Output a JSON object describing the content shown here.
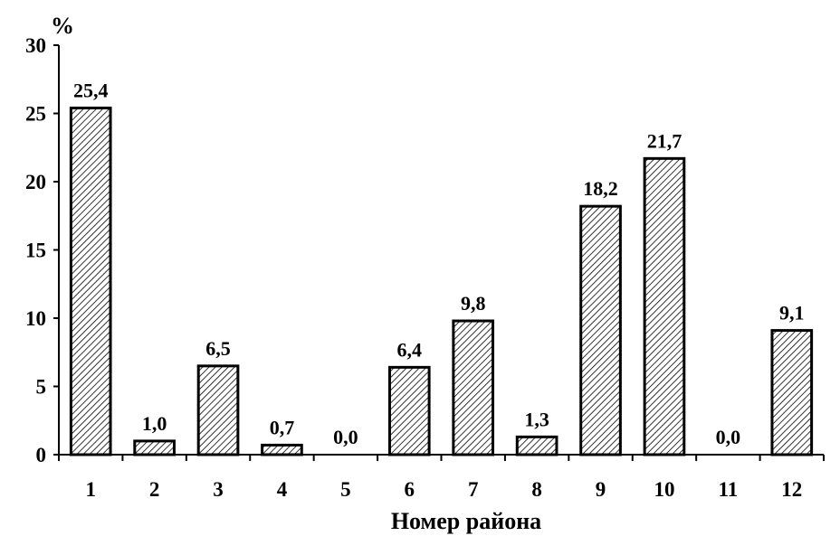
{
  "chart_data": {
    "type": "bar",
    "title": "",
    "xlabel": "Номер района",
    "ylabel": "%",
    "ylim": [
      0,
      30
    ],
    "yticks": [
      0,
      5,
      10,
      15,
      20,
      25,
      30
    ],
    "categories": [
      "1",
      "2",
      "3",
      "4",
      "5",
      "6",
      "7",
      "8",
      "9",
      "10",
      "11",
      "12"
    ],
    "values": [
      25.4,
      1.0,
      6.5,
      0.7,
      0.0,
      6.4,
      9.8,
      1.3,
      18.2,
      21.7,
      0.0,
      9.1
    ],
    "data_labels": [
      "25,4",
      "1,0",
      "6,5",
      "0,7",
      "0,0",
      "6,4",
      "9,8",
      "1,3",
      "18,2",
      "21,7",
      "0,0",
      "9,1"
    ],
    "grid": false,
    "bar_fill": "hatched",
    "bar_color": "#000000"
  }
}
